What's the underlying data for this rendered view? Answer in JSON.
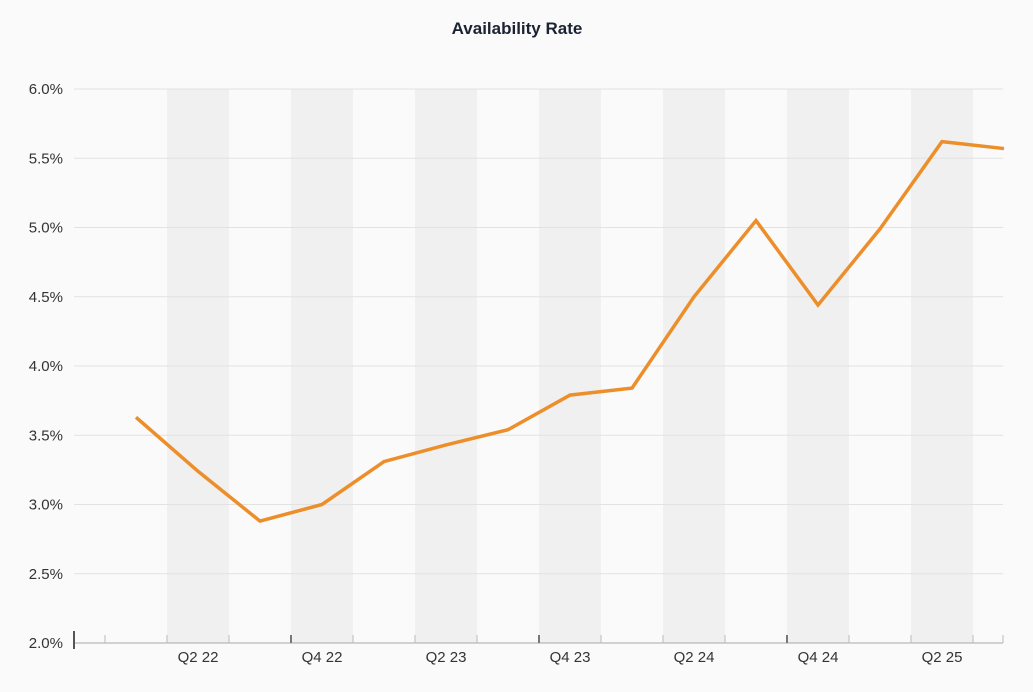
{
  "chart_data": {
    "type": "line",
    "title": "Availability Rate",
    "xlabel": "",
    "ylabel": "",
    "x": [
      "Q1 22",
      "Q2 22",
      "Q3 22",
      "Q4 22",
      "Q1 23",
      "Q2 23",
      "Q3 23",
      "Q4 23",
      "Q1 24",
      "Q2 24",
      "Q3 24",
      "Q4 24",
      "Q1 25",
      "Q2 25",
      "Q3 25"
    ],
    "x_tick_labels": [
      "Q2 22",
      "Q4 22",
      "Q2 23",
      "Q4 23",
      "Q2 24",
      "Q4 24",
      "Q2 25"
    ],
    "series": [
      {
        "values": [
          3.63,
          3.24,
          2.88,
          3.0,
          3.31,
          3.43,
          3.54,
          3.79,
          3.84,
          4.5,
          5.05,
          4.44,
          4.99,
          5.62,
          5.57
        ]
      }
    ],
    "ylim": [
      2.0,
      6.0
    ],
    "y_ticks": [
      2.0,
      2.5,
      3.0,
      3.5,
      4.0,
      4.5,
      5.0,
      5.5,
      6.0
    ],
    "y_tick_labels": [
      "2.0%",
      "2.5%",
      "3.0%",
      "3.5%",
      "4.0%",
      "4.5%",
      "5.0%",
      "5.5%",
      "6.0%"
    ],
    "grid": true,
    "alternating_bands": true,
    "legend": "none",
    "colors": {
      "line": "#ec8f2b",
      "band": "#f0f0f0",
      "grid": "#e2e2e2",
      "axis": "#a8a8a8",
      "background": "#fafafa",
      "title": "#1b2333",
      "text": "#333333"
    }
  }
}
